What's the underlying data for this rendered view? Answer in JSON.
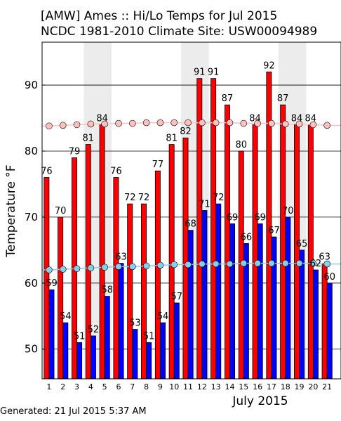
{
  "chart_data": {
    "type": "bar",
    "title_lines": [
      "[AMW] Ames :: Hi/Lo Temps for Jul 2015",
      "NCDC 1981-2010 Climate Site: USW00094989"
    ],
    "xlabel": "July 2015",
    "ylabel": "Temperature °F",
    "ylim": [
      45.5,
      96.5
    ],
    "yticks": [
      50,
      60,
      70,
      80,
      90
    ],
    "xlim": [
      0.5,
      22
    ],
    "categories": [
      "1",
      "2",
      "3",
      "4",
      "5",
      "6",
      "7",
      "8",
      "9",
      "10",
      "11",
      "12",
      "13",
      "14",
      "15",
      "16",
      "17",
      "18",
      "19",
      "20",
      "21"
    ],
    "weekend_shaded_days": [
      4,
      11,
      18
    ],
    "series": [
      {
        "values": [
          76,
          70,
          79,
          81,
          84,
          76,
          72,
          72,
          77,
          81,
          82,
          91,
          91,
          87,
          80,
          84,
          92,
          87,
          84,
          84,
          63
        ],
        "color": "#ff0000"
      },
      {
        "values": [
          59,
          54,
          51,
          52,
          58,
          63,
          53,
          51,
          54,
          57,
          68,
          71,
          72,
          69,
          66,
          69,
          67,
          70,
          65,
          62,
          60
        ],
        "color": "#0000ff"
      }
    ],
    "climate_high": {
      "x": [
        1,
        2,
        3,
        4,
        5,
        6,
        7,
        8,
        9,
        10,
        11,
        12,
        13,
        14,
        15,
        16,
        17,
        18,
        19,
        20,
        21
      ],
      "values": [
        83.8,
        83.9,
        84.0,
        84.1,
        84.1,
        84.2,
        84.2,
        84.3,
        84.3,
        84.3,
        84.3,
        84.3,
        84.3,
        84.3,
        84.2,
        84.2,
        84.2,
        84.1,
        84.1,
        84.0,
        83.9
      ],
      "color": "#ffc0c0"
    },
    "climate_low": {
      "x": [
        1,
        2,
        3,
        4,
        5,
        6,
        7,
        8,
        9,
        10,
        11,
        12,
        13,
        14,
        15,
        16,
        17,
        18,
        19,
        20,
        21
      ],
      "values": [
        62.0,
        62.1,
        62.2,
        62.3,
        62.4,
        62.5,
        62.5,
        62.6,
        62.7,
        62.8,
        62.8,
        62.9,
        62.9,
        62.9,
        63.0,
        63.0,
        63.0,
        63.0,
        63.0,
        63.0,
        62.9
      ],
      "color": "#87ceeb"
    },
    "grid": true
  },
  "footer": {
    "generated": "Generated: 21 Jul 2015 5:37 AM"
  }
}
